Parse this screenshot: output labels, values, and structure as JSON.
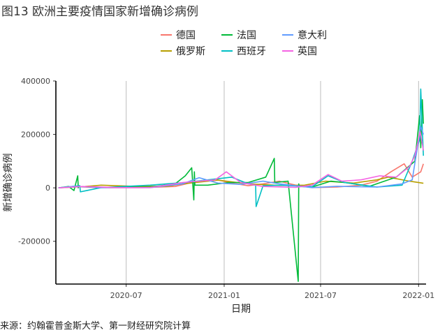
{
  "figure_title": "图13 欧洲主要疫情国家新增确诊病例",
  "source": "来源：约翰霍普金斯大学、第一财经研究院计算",
  "chart_data": {
    "type": "line",
    "title": "",
    "xlabel": "日期",
    "ylabel": "新增确诊病例",
    "x_ticks": [
      "2020-07",
      "2021-01",
      "2021-07",
      "2022-01"
    ],
    "y_ticks": [
      "-200000",
      "0",
      "200000",
      "400000"
    ],
    "xlim": [
      "2020-02-20",
      "2022-01-15"
    ],
    "ylim": [
      -360000,
      400000
    ],
    "legend_position": "top",
    "grid": "vertical",
    "series": [
      {
        "name": "德国",
        "color": "#F8766D",
        "x": [
          "2020-02-25",
          "2020-03-25",
          "2020-04-25",
          "2020-06-01",
          "2020-08-01",
          "2020-10-01",
          "2020-11-01",
          "2020-12-20",
          "2021-01-15",
          "2021-02-15",
          "2021-03-15",
          "2021-04-15",
          "2021-05-15",
          "2021-06-15",
          "2021-08-01",
          "2021-09-15",
          "2021-10-15",
          "2021-11-10",
          "2021-12-05",
          "2021-12-20",
          "2022-01-05",
          "2022-01-10"
        ],
        "values": [
          0,
          5000,
          2000,
          500,
          1000,
          5000,
          20000,
          30000,
          18000,
          8000,
          15000,
          25000,
          10000,
          1000,
          3000,
          10000,
          25000,
          60000,
          90000,
          40000,
          60000,
          90000
        ]
      },
      {
        "name": "俄罗斯",
        "color": "#B79F00",
        "x": [
          "2020-02-25",
          "2020-04-15",
          "2020-05-15",
          "2020-07-15",
          "2020-09-15",
          "2020-10-15",
          "2020-12-20",
          "2021-02-15",
          "2021-04-15",
          "2021-06-01",
          "2021-07-10",
          "2021-09-01",
          "2021-10-15",
          "2021-11-05",
          "2021-12-15",
          "2022-01-10"
        ],
        "values": [
          0,
          5000,
          10000,
          6000,
          6000,
          15000,
          29000,
          15000,
          9000,
          10000,
          25000,
          18000,
          30000,
          40000,
          25000,
          17000
        ]
      },
      {
        "name": "法国",
        "color": "#00BA38",
        "x": [
          "2020-02-25",
          "2020-03-15",
          "2020-03-25",
          "2020-04-01",
          "2020-04-02",
          "2020-04-03",
          "2020-05-15",
          "2020-08-15",
          "2020-10-01",
          "2020-10-20",
          "2020-11-01",
          "2020-11-05",
          "2020-11-06",
          "2020-11-07",
          "2020-12-01",
          "2021-01-10",
          "2021-02-15",
          "2021-03-20",
          "2021-04-05",
          "2021-04-06",
          "2021-05-01",
          "2021-05-20",
          "2021-05-21",
          "2021-05-22",
          "2021-06-15",
          "2021-07-20",
          "2021-08-15",
          "2021-10-01",
          "2021-11-20",
          "2021-12-25",
          "2022-01-03",
          "2022-01-05",
          "2022-01-08",
          "2022-01-10"
        ],
        "values": [
          0,
          5000,
          -10000,
          45000,
          0,
          5000,
          1000,
          3000,
          15000,
          45000,
          75000,
          -45000,
          60000,
          10000,
          10000,
          20000,
          20000,
          40000,
          110000,
          20000,
          25000,
          -350000,
          15000,
          5000,
          3000,
          25000,
          20000,
          6000,
          40000,
          100000,
          270000,
          150000,
          330000,
          240000
        ]
      },
      {
        "name": "西班牙",
        "color": "#00BFC4",
        "x": [
          "2020-02-25",
          "2020-04-05",
          "2020-04-06",
          "2020-05-15",
          "2020-08-15",
          "2020-09-15",
          "2020-10-20",
          "2020-11-10",
          "2021-01-15",
          "2021-02-15",
          "2021-03-01",
          "2021-03-02",
          "2021-03-15",
          "2021-04-15",
          "2021-06-15",
          "2021-07-15",
          "2021-08-15",
          "2021-10-15",
          "2021-12-01",
          "2021-12-20",
          "2022-01-03",
          "2022-01-05",
          "2022-01-10"
        ],
        "values": [
          0,
          8000,
          -15000,
          1000,
          10000,
          15000,
          20000,
          25000,
          40000,
          15000,
          10000,
          -70000,
          8000,
          10000,
          4000,
          45000,
          20000,
          3000,
          10000,
          100000,
          180000,
          370000,
          120000
        ]
      },
      {
        "name": "意大利",
        "color": "#619CFF",
        "x": [
          "2020-02-25",
          "2020-03-25",
          "2020-05-15",
          "2020-08-15",
          "2020-10-15",
          "2020-11-15",
          "2020-12-20",
          "2021-02-01",
          "2021-03-15",
          "2021-04-15",
          "2021-06-15",
          "2021-08-01",
          "2021-10-15",
          "2021-12-01",
          "2021-12-20",
          "2022-01-05",
          "2022-01-10"
        ],
        "values": [
          0,
          6000,
          1000,
          1000,
          15000,
          38000,
          18000,
          13000,
          25000,
          15000,
          1000,
          6000,
          3000,
          15000,
          30000,
          230000,
          200000
        ]
      },
      {
        "name": "英国",
        "color": "#F564E3",
        "x": [
          "2020-02-25",
          "2020-04-10",
          "2020-06-15",
          "2020-08-15",
          "2020-10-15",
          "2020-11-15",
          "2020-12-15",
          "2021-01-05",
          "2021-02-01",
          "2021-03-15",
          "2021-05-15",
          "2021-06-15",
          "2021-07-15",
          "2021-08-10",
          "2021-09-15",
          "2021-10-20",
          "2021-11-20",
          "2021-12-15",
          "2021-12-25",
          "2022-01-04",
          "2022-01-10"
        ],
        "values": [
          0,
          5000,
          1000,
          1000,
          20000,
          25000,
          30000,
          60000,
          20000,
          5000,
          2000,
          10000,
          50000,
          25000,
          30000,
          45000,
          40000,
          80000,
          120000,
          210000,
          140000
        ]
      }
    ]
  }
}
